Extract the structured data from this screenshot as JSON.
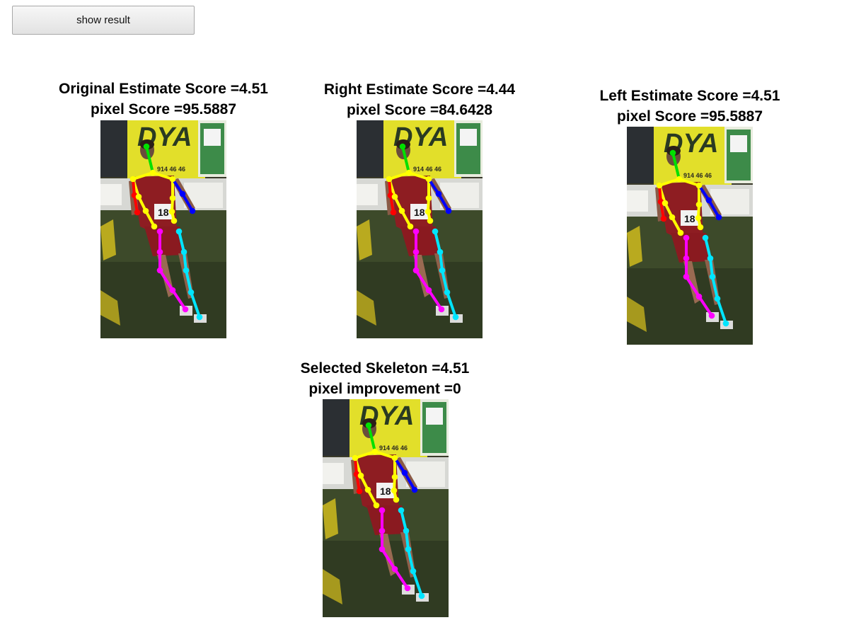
{
  "toolbar": {
    "show_result_label": "show result"
  },
  "panels": {
    "original": {
      "line1": "Original Estimate Score =4.51",
      "line2": "pixel Score =95.5887"
    },
    "right": {
      "line1": "Right Estimate Score =4.44",
      "line2": "pixel Score =84.6428"
    },
    "left": {
      "line1": "Left Estimate Score =4.51",
      "line2": "pixel Score =95.5887"
    },
    "selected": {
      "line1": "Selected Skeleton =4.51",
      "line2": "pixel improvement =0"
    }
  },
  "photo": {
    "banner_text": "DYA",
    "bib_text": "18",
    "ad_text": "914 46 46"
  },
  "skeleton_colors": {
    "head": "#00e000",
    "torso": "#ffff00",
    "right_arm": "#ff0000",
    "left_arm": "#0000ff",
    "right_leg": "#ff00ff",
    "left_leg": "#00e5ff"
  }
}
